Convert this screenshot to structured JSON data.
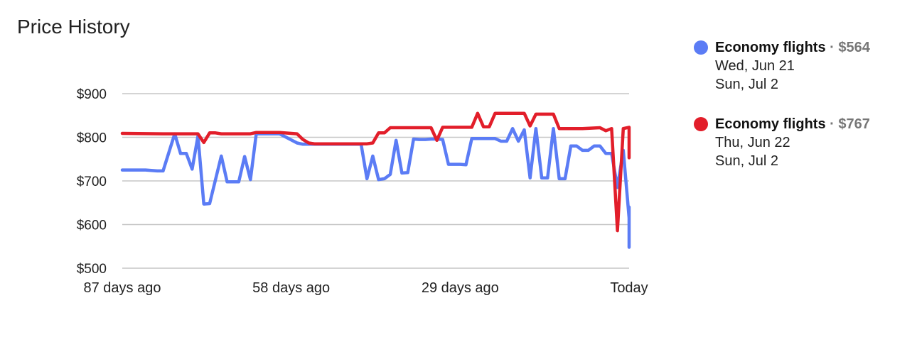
{
  "title": "Price History",
  "chart_data": {
    "type": "line",
    "title": "Price History",
    "xlabel": "",
    "ylabel": "",
    "xlim": [
      -87,
      0
    ],
    "ylim": [
      500,
      900
    ],
    "yticks": [
      900,
      800,
      700,
      600,
      500
    ],
    "ytick_labels": [
      "$900",
      "$800",
      "$700",
      "$600",
      "$500"
    ],
    "xticks": [
      -87,
      -58,
      -29,
      0
    ],
    "xtick_labels": [
      "87 days ago",
      "58 days ago",
      "29 days ago",
      "Today"
    ],
    "grid": true,
    "legend_position": "right",
    "series": [
      {
        "name": "Economy flights",
        "color": "#5b7cf5",
        "price_label": "$564",
        "dates": [
          "Wed, Jun 21",
          "Sun, Jul 2"
        ],
        "points": [
          [
            -87,
            725
          ],
          [
            -83,
            725
          ],
          [
            -81,
            723
          ],
          [
            -80,
            723
          ],
          [
            -78,
            808
          ],
          [
            -77,
            763
          ],
          [
            -76,
            763
          ],
          [
            -75,
            727
          ],
          [
            -74,
            803
          ],
          [
            -73,
            647
          ],
          [
            -72,
            648
          ],
          [
            -70,
            757
          ],
          [
            -69,
            698
          ],
          [
            -68,
            698
          ],
          [
            -67,
            698
          ],
          [
            -66,
            756
          ],
          [
            -65,
            703
          ],
          [
            -64,
            808
          ],
          [
            -60,
            808
          ],
          [
            -57,
            787
          ],
          [
            -56,
            784
          ],
          [
            -55,
            784
          ],
          [
            -54,
            784
          ],
          [
            -53,
            784
          ],
          [
            -52,
            784
          ],
          [
            -51,
            784
          ],
          [
            -50,
            784
          ],
          [
            -49,
            784
          ],
          [
            -48,
            784
          ],
          [
            -47,
            784
          ],
          [
            -46,
            784
          ],
          [
            -45,
            705
          ],
          [
            -44,
            757
          ],
          [
            -43,
            703
          ],
          [
            -42,
            705
          ],
          [
            -41,
            715
          ],
          [
            -40,
            793
          ],
          [
            -39,
            718
          ],
          [
            -38,
            719
          ],
          [
            -37,
            796
          ],
          [
            -36,
            795
          ],
          [
            -35,
            795
          ],
          [
            -34,
            796
          ],
          [
            -33,
            796
          ],
          [
            -32,
            795
          ],
          [
            -31,
            738
          ],
          [
            -30,
            738
          ],
          [
            -29,
            738
          ],
          [
            -28,
            737
          ],
          [
            -27,
            797
          ],
          [
            -26,
            797
          ],
          [
            -25,
            797
          ],
          [
            -24,
            797
          ],
          [
            -23,
            797
          ],
          [
            -22,
            791
          ],
          [
            -21,
            791
          ],
          [
            -20,
            820
          ],
          [
            -19,
            791
          ],
          [
            -18,
            817
          ],
          [
            -17,
            707
          ],
          [
            -16,
            820
          ],
          [
            -15,
            707
          ],
          [
            -14,
            707
          ],
          [
            -13,
            820
          ],
          [
            -12,
            705
          ],
          [
            -11,
            705
          ],
          [
            -10,
            780
          ],
          [
            -9,
            780
          ],
          [
            -8,
            770
          ],
          [
            -7,
            770
          ],
          [
            -6,
            780
          ],
          [
            -5,
            780
          ],
          [
            -4,
            763
          ],
          [
            -3,
            763
          ],
          [
            -2,
            685
          ],
          [
            -1,
            770
          ],
          [
            0,
            615
          ],
          [
            1,
            625
          ],
          [
            2,
            640
          ],
          [
            3,
            548
          ],
          [
            4,
            548
          ],
          [
            5,
            564
          ]
        ]
      },
      {
        "name": "Economy flights",
        "color": "#e21e2a",
        "price_label": "$767",
        "dates": [
          "Thu, Jun 22",
          "Sun, Jul 2"
        ],
        "points": [
          [
            -87,
            809
          ],
          [
            -80,
            808
          ],
          [
            -74,
            808
          ],
          [
            -73,
            788
          ],
          [
            -72,
            810
          ],
          [
            -71,
            810
          ],
          [
            -70,
            808
          ],
          [
            -65,
            808
          ],
          [
            -64,
            811
          ],
          [
            -60,
            811
          ],
          [
            -57,
            808
          ],
          [
            -56,
            795
          ],
          [
            -55,
            787
          ],
          [
            -54,
            785
          ],
          [
            -45,
            785
          ],
          [
            -44,
            787
          ],
          [
            -43,
            810
          ],
          [
            -42,
            810
          ],
          [
            -41,
            822
          ],
          [
            -34,
            822
          ],
          [
            -33,
            793
          ],
          [
            -32,
            823
          ],
          [
            -27,
            823
          ],
          [
            -26,
            855
          ],
          [
            -25,
            824
          ],
          [
            -24,
            824
          ],
          [
            -23,
            855
          ],
          [
            -18,
            855
          ],
          [
            -17,
            826
          ],
          [
            -16,
            853
          ],
          [
            -13,
            853
          ],
          [
            -12,
            820
          ],
          [
            -8,
            820
          ],
          [
            -5,
            822
          ],
          [
            -4,
            815
          ],
          [
            -3,
            820
          ],
          [
            -2,
            586
          ],
          [
            -1,
            820
          ],
          [
            0,
            823
          ],
          [
            1,
            808
          ],
          [
            2,
            806
          ],
          [
            3,
            753
          ],
          [
            4,
            767
          ]
        ]
      }
    ]
  }
}
